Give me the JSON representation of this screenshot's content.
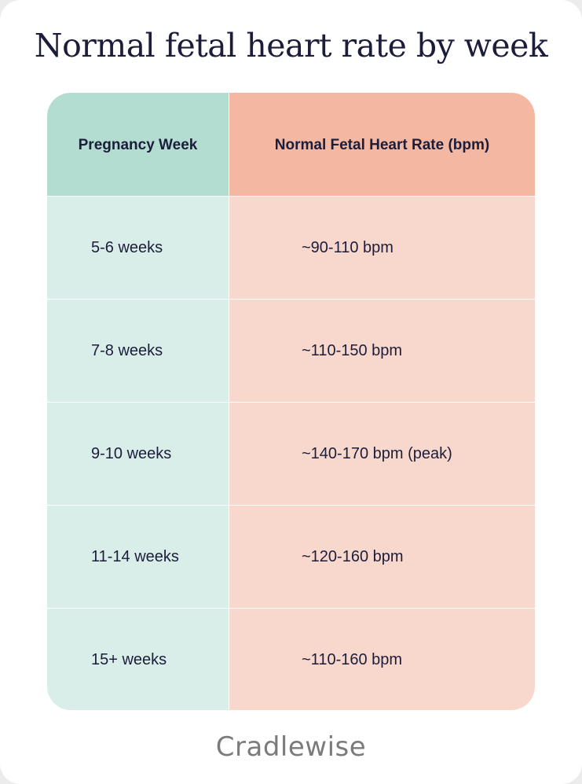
{
  "title": "Normal fetal heart rate by week",
  "table": {
    "headers": {
      "week": "Pregnancy Week",
      "rate": "Normal Fetal Heart Rate (bpm)"
    },
    "rows": [
      {
        "week": "5-6 weeks",
        "rate": "~90-110 bpm"
      },
      {
        "week": "7-8 weeks",
        "rate": "~110-150 bpm"
      },
      {
        "week": "9-10 weeks",
        "rate": "~140-170 bpm (peak)"
      },
      {
        "week": "11-14 weeks",
        "rate": "~120-160 bpm"
      },
      {
        "week": "15+ weeks",
        "rate": "~110-160 bpm"
      }
    ]
  },
  "brand": "Cradlewise",
  "colors": {
    "week_header": "#b4ddd1",
    "week_cell": "#d9eee8",
    "rate_header": "#f3b7a2",
    "rate_cell": "#f8d8cd",
    "text": "#1c1d3a"
  }
}
